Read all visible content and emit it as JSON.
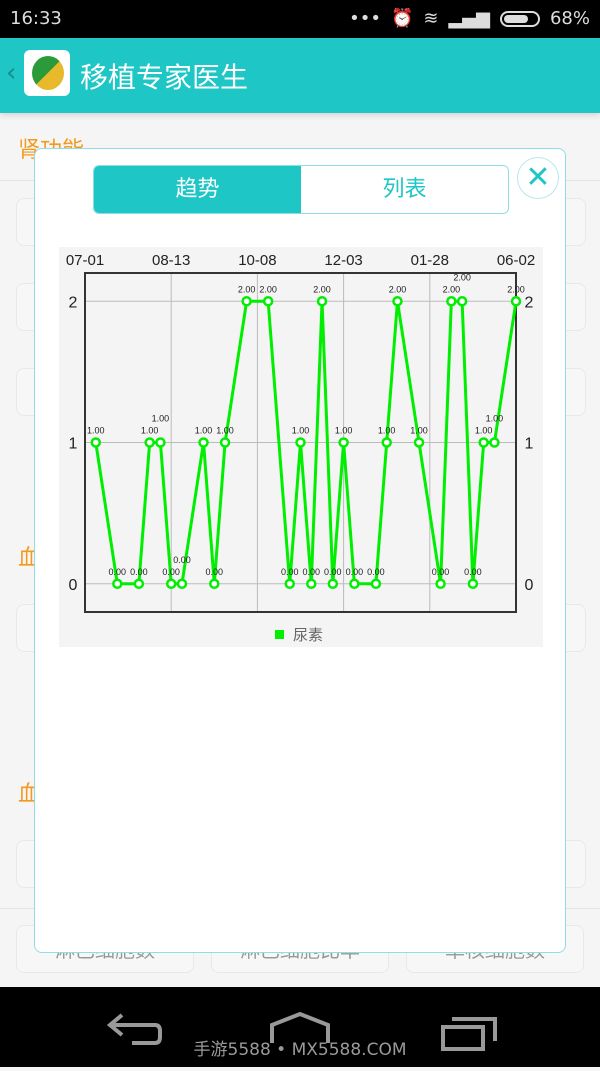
{
  "status_bar": {
    "time": "16:33",
    "dots": "•••",
    "battery": "68%",
    "battery_level": 0.68
  },
  "header": {
    "back": "‹",
    "title": "移植专家医生"
  },
  "background": {
    "sections": [
      "肾功能",
      "血",
      "血"
    ],
    "bottom_buttons": [
      "淋巴细胞数",
      "淋巴细胞比率",
      "单核细胞数"
    ]
  },
  "modal": {
    "tabs": [
      {
        "label": "趋势",
        "active": true
      },
      {
        "label": "列表",
        "active": false
      }
    ],
    "close": "✕"
  },
  "chart_data": {
    "type": "line",
    "series": [
      {
        "name": "尿素",
        "color": "#00ee00",
        "x": [
          1,
          3,
          5,
          6,
          7,
          8,
          9,
          11,
          12,
          13,
          15,
          17,
          19,
          20,
          21,
          22,
          23,
          24,
          25,
          27,
          28,
          29,
          31,
          33,
          34,
          35,
          36,
          37,
          38,
          40
        ],
        "values": [
          1,
          0,
          0,
          1,
          1,
          0,
          0,
          1,
          0,
          1,
          2,
          2,
          0,
          1,
          0,
          2,
          0,
          1,
          0,
          0,
          1,
          2,
          1,
          0,
          2,
          2,
          0,
          1,
          1,
          2
        ]
      }
    ],
    "x_ticks": [
      {
        "x": 0,
        "label": "07-01"
      },
      {
        "x": 8,
        "label": "08-13"
      },
      {
        "x": 16,
        "label": "10-08"
      },
      {
        "x": 24,
        "label": "12-03"
      },
      {
        "x": 32,
        "label": "01-28"
      },
      {
        "x": 40,
        "label": "06-02"
      }
    ],
    "y_ticks": [
      0,
      1,
      2
    ],
    "ylim": [
      -0.2,
      2.2
    ],
    "grid": true,
    "legend": "bottom",
    "data_label_format": "2 decimals"
  },
  "nav": {
    "watermark": "手游5588 • MX5588.COM"
  }
}
